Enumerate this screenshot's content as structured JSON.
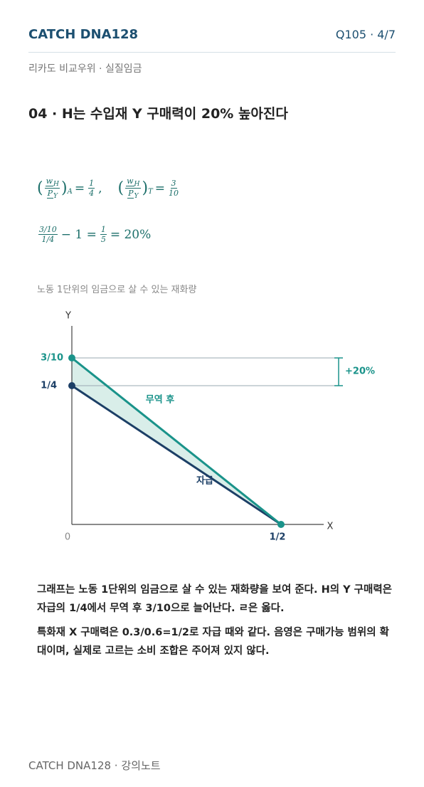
{
  "header": {
    "brand": "CATCH DNA128",
    "page": "Q105 · 4/7"
  },
  "subtitle": "리카도 비교우위 · 실질임금",
  "question": "04 · H는 수입재 Y 구매력이 20% 높아진다",
  "formula1": {
    "w": "w",
    "h": "H",
    "p": "P",
    "y": "Y",
    "a": "A",
    "eq": "=",
    "a_num": "1",
    "a_den": "4",
    "comma": ",",
    "t": "T",
    "t_num": "3",
    "t_den": "10"
  },
  "formula2": {
    "num": "3/10",
    "den": "1/4",
    "minus": "− 1 =",
    "f_num": "1",
    "f_den": "5",
    "result": "= 20%"
  },
  "diagram": {
    "caption": "노동 1단위의 임금으로 살 수 있는 재화량",
    "y_axis": "Y",
    "x_axis": "X",
    "origin": "0",
    "y_high": "3/10",
    "y_low": "1/4",
    "x_end": "1/2",
    "trade_label": "무역 후",
    "autarky_label": "자급",
    "gain": "+20%"
  },
  "explanation": [
    "그래프는 노동 1단위의 임금으로 살 수 있는 재화량을 보여 준다. H의 Y 구매력은 자급의 1/4에서 무역 후 3/10으로 늘어난다. ㄹ은 옳다.",
    "특화재 X 구매력은 0.3/0.6=1/2로 자급 때와 같다. 음영은 구매가능 범위의 확대이며, 실제로 고르는 소비 조합은 주어져 있지 않다."
  ],
  "footer": "CATCH DNA128 · 강의노트"
}
